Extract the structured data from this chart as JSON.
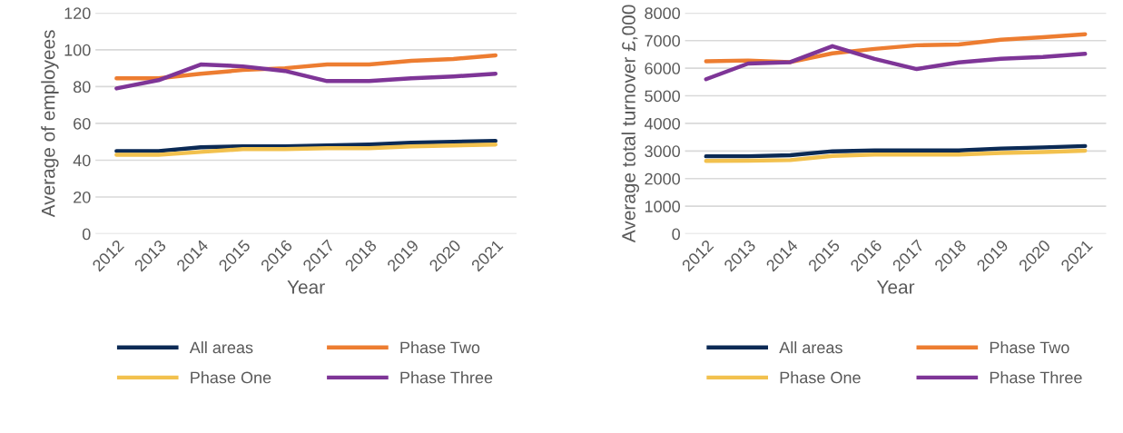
{
  "chart_data": [
    {
      "type": "line",
      "xlabel": "Year",
      "ylabel": "Average of employees",
      "categories": [
        "2012",
        "2013",
        "2014",
        "2015",
        "2016",
        "2017",
        "2018",
        "2019",
        "2020",
        "2021"
      ],
      "ylim": [
        0,
        120
      ],
      "yticks": [
        0,
        20,
        40,
        60,
        80,
        100,
        120
      ],
      "grid": "y",
      "legend": "bottom",
      "marker": "none",
      "line_style": "solid",
      "series": [
        {
          "name": "All areas",
          "color": "#0b2a55",
          "values": [
            45,
            45,
            47,
            47.5,
            47.5,
            48,
            48.5,
            49.5,
            50,
            50.5
          ]
        },
        {
          "name": "Phase One",
          "color": "#f2c14e",
          "values": [
            43,
            43,
            44.5,
            46,
            46,
            46.5,
            46.5,
            47.5,
            48,
            48.5
          ]
        },
        {
          "name": "Phase Two",
          "color": "#ed7d31",
          "values": [
            84.5,
            84.5,
            87,
            89,
            90,
            92,
            92,
            94,
            95,
            97
          ]
        },
        {
          "name": "Phase Three",
          "color": "#7e3597",
          "values": [
            79,
            83.5,
            92,
            91,
            88.5,
            83,
            83,
            84.5,
            85.5,
            87
          ]
        }
      ]
    },
    {
      "type": "line",
      "xlabel": "Year",
      "ylabel": "Average total turnover £,000",
      "categories": [
        "2012",
        "2013",
        "2014",
        "2015",
        "2016",
        "2017",
        "2018",
        "2019",
        "2020",
        "2021"
      ],
      "ylim": [
        0,
        8000
      ],
      "yticks": [
        0,
        1000,
        2000,
        3000,
        4000,
        5000,
        6000,
        7000,
        8000
      ],
      "grid": "y",
      "legend": "bottom",
      "marker": "none",
      "line_style": "solid",
      "series": [
        {
          "name": "All areas",
          "color": "#0b2a55",
          "values": [
            2810,
            2810,
            2850,
            2990,
            3020,
            3020,
            3020,
            3090,
            3130,
            3180
          ]
        },
        {
          "name": "Phase One",
          "color": "#f2c14e",
          "values": [
            2640,
            2650,
            2670,
            2820,
            2870,
            2870,
            2870,
            2930,
            2960,
            3010
          ]
        },
        {
          "name": "Phase Two",
          "color": "#ed7d31",
          "values": [
            6250,
            6280,
            6220,
            6540,
            6700,
            6830,
            6860,
            7030,
            7120,
            7230
          ]
        },
        {
          "name": "Phase Three",
          "color": "#7e3597",
          "values": [
            5600,
            6170,
            6220,
            6800,
            6340,
            5970,
            6210,
            6340,
            6410,
            6520
          ]
        }
      ]
    }
  ]
}
